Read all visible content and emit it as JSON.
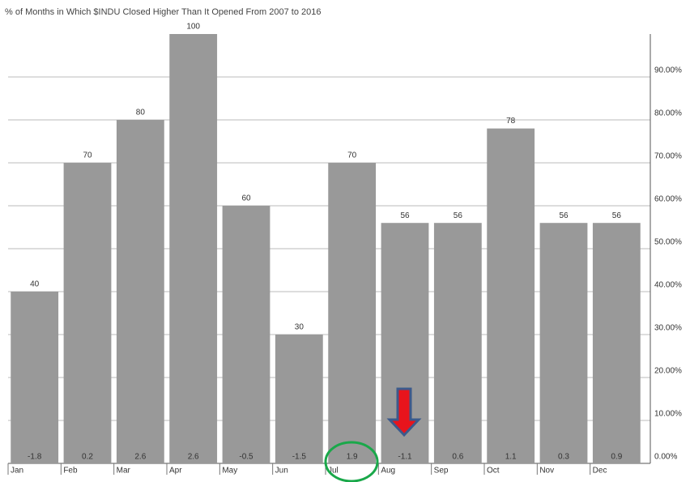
{
  "chart_data": {
    "type": "bar",
    "title": "% of Months in Which $INDU Closed Higher Than It Opened From 2007 to 2016",
    "categories": [
      "Jan",
      "Feb",
      "Mar",
      "Apr",
      "May",
      "Jun",
      "Jul",
      "Aug",
      "Sep",
      "Oct",
      "Nov",
      "Dec"
    ],
    "values": [
      40,
      70,
      80,
      100,
      60,
      30,
      70,
      56,
      56,
      78,
      56,
      56
    ],
    "bottom_labels": [
      -1.8,
      0.2,
      2.6,
      2.6,
      -0.5,
      -1.5,
      1.9,
      -1.1,
      0.6,
      1.1,
      0.3,
      0.9
    ],
    "color": "#999999",
    "ylim": [
      0,
      100
    ],
    "yticks": [
      {
        "value": 0,
        "label": "0.00%"
      },
      {
        "value": 10,
        "label": "10.00%"
      },
      {
        "value": 20,
        "label": "20.00%"
      },
      {
        "value": 30,
        "label": "30.00%"
      },
      {
        "value": 40,
        "label": "40.00%"
      },
      {
        "value": 50,
        "label": "50.00%"
      },
      {
        "value": 60,
        "label": "60.00%"
      },
      {
        "value": 70,
        "label": "70.00%"
      },
      {
        "value": 80,
        "label": "80.00%"
      },
      {
        "value": 90,
        "label": "90.00%"
      }
    ],
    "grid": true,
    "y_axis_side": "right"
  }
}
